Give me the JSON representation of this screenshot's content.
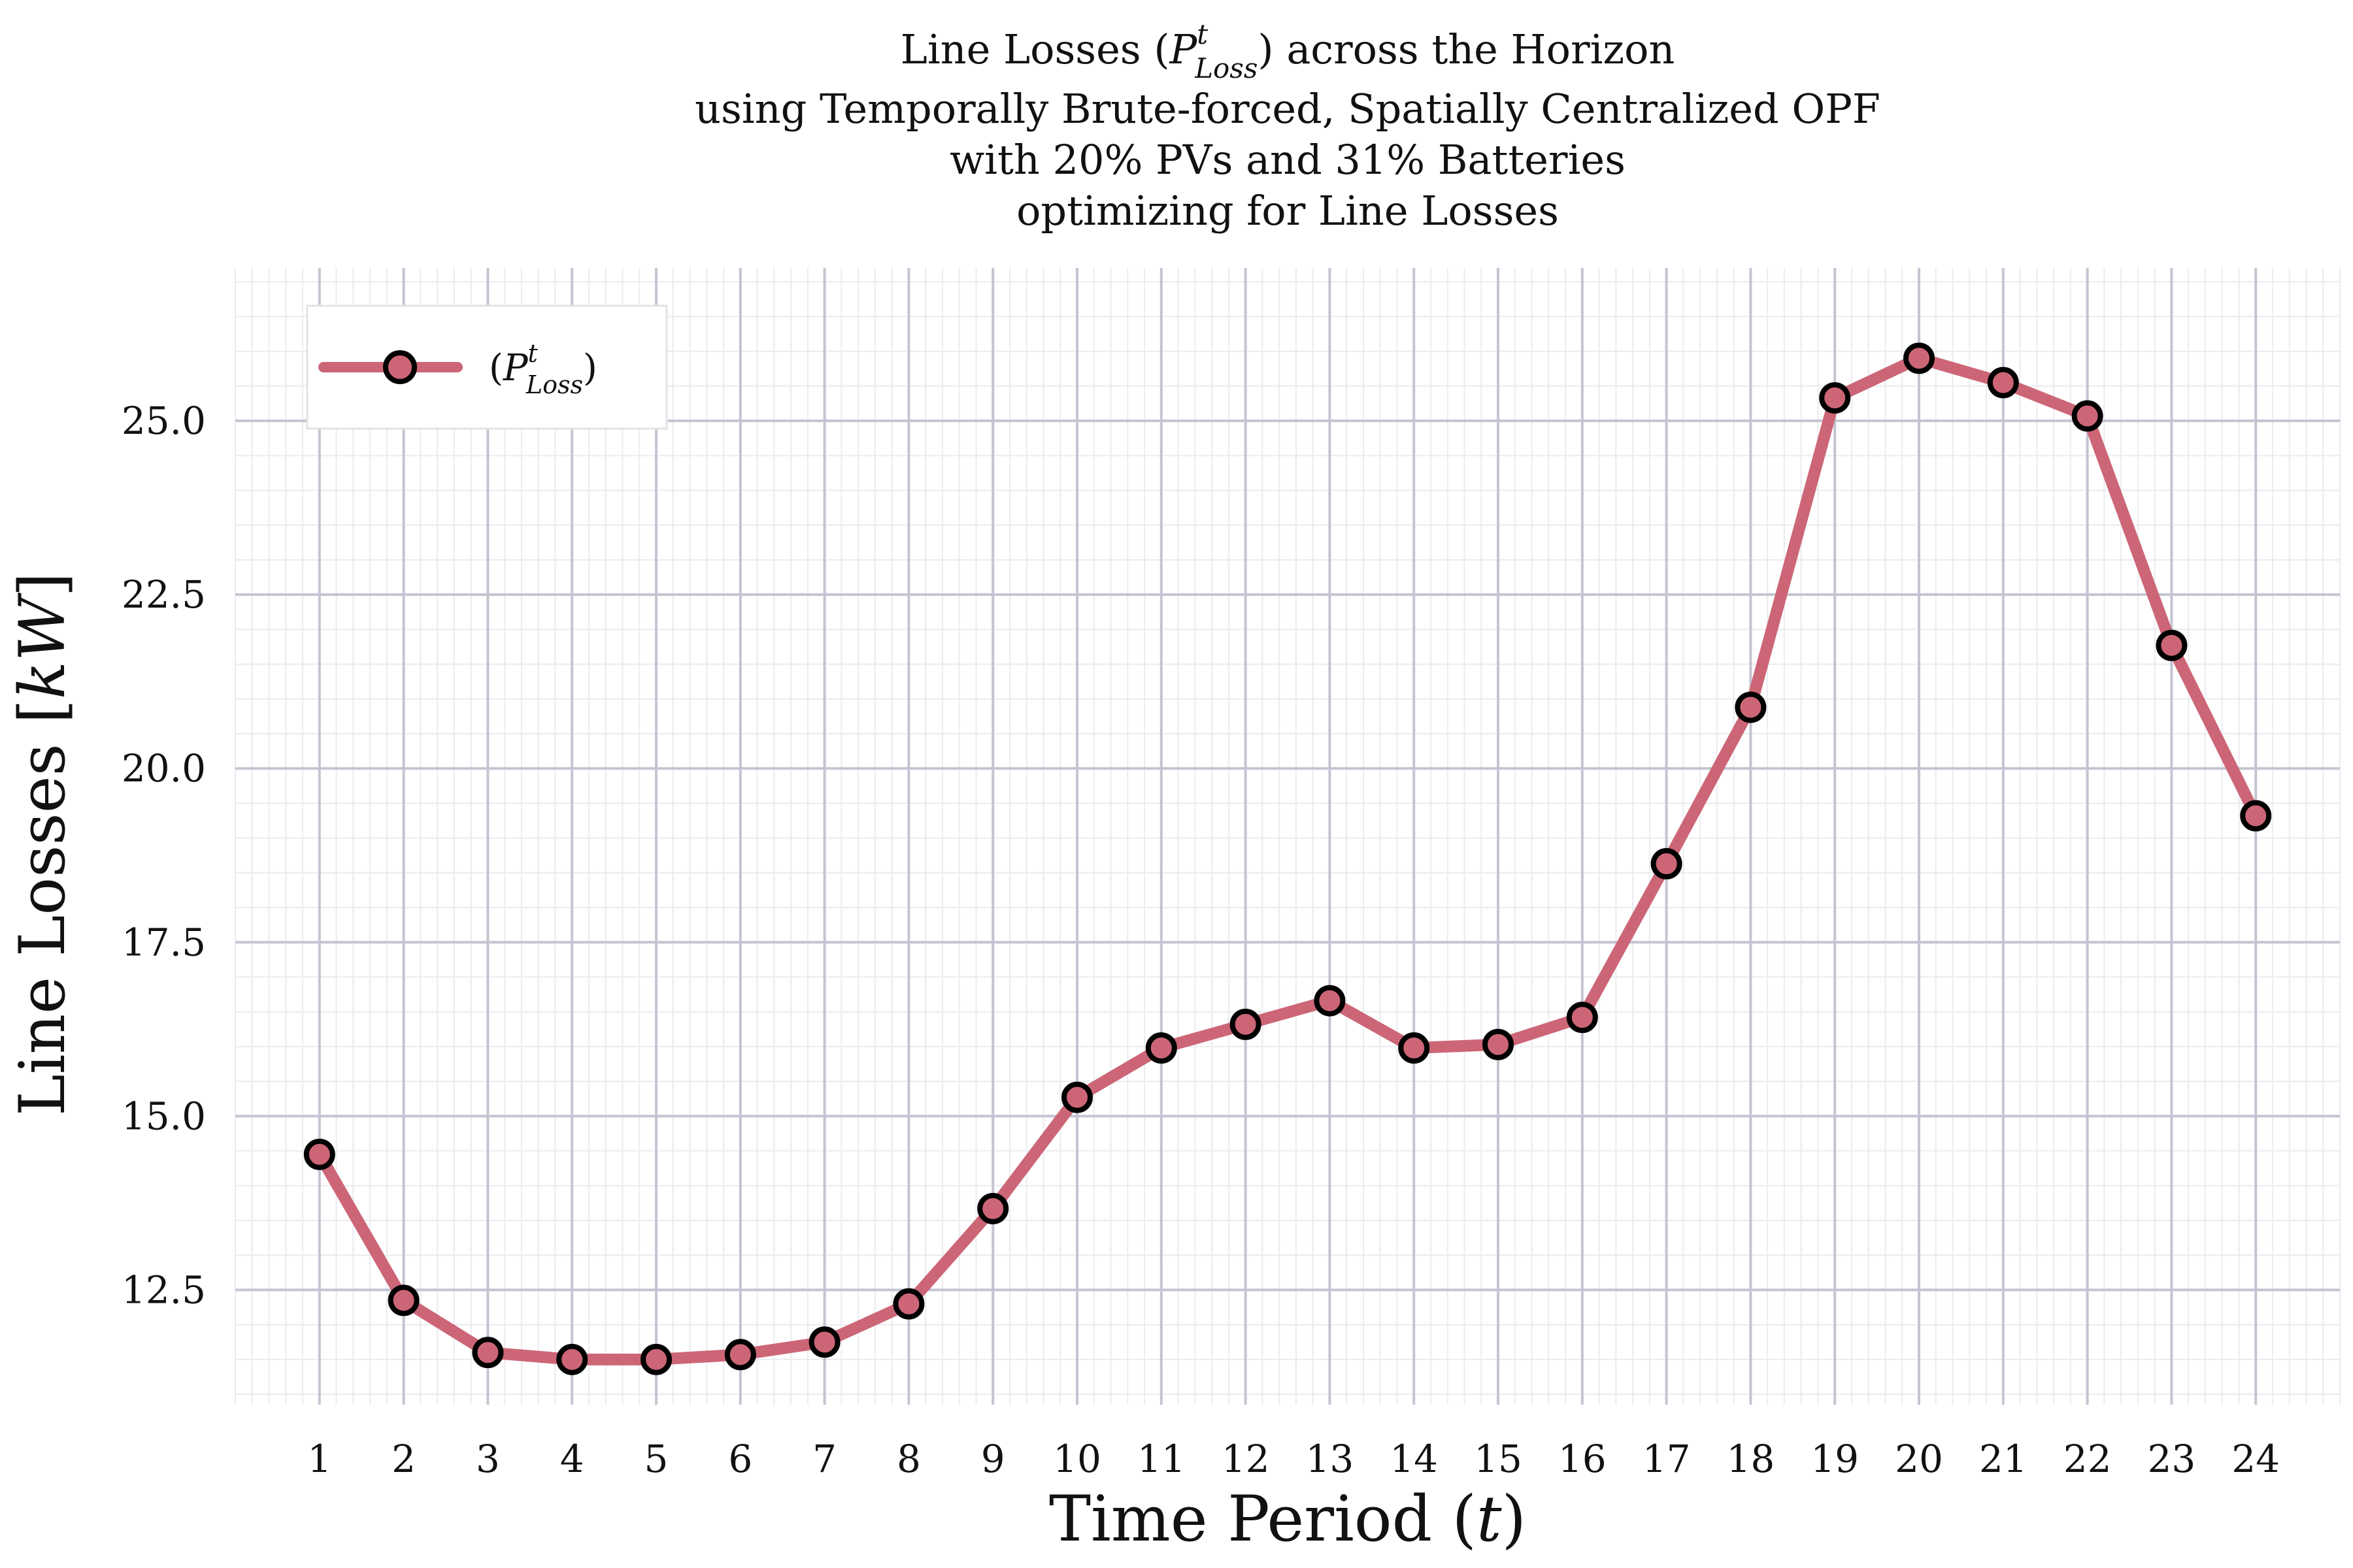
{
  "chart_data": {
    "type": "line",
    "title": [
      "Line Losses (P_Loss^t) across the Horizon",
      "using Temporally Brute-forced, Spatially Centralized OPF",
      "with 20% PVs and 31% Batteries",
      "optimizing for Line Losses"
    ],
    "title_parts": {
      "l1_pre": "Line Losses (",
      "l1_P": "P",
      "l1_sup": "t",
      "l1_sub": "Loss",
      "l1_post": ") across the Horizon",
      "l2": "using Temporally Brute-forced, Spatially Centralized OPF",
      "l3": "with 20% PVs and 31% Batteries",
      "l4": "optimizing for Line Losses"
    },
    "xlabel": "Time Period (t)",
    "xlabel_parts": {
      "pre": "Time Period (",
      "var": "t",
      "post": ")"
    },
    "ylabel": "Line Losses [kW]",
    "ylabel_parts": {
      "pre": "Line Losses [",
      "var": "kW",
      "post": "]"
    },
    "x": [
      1,
      2,
      3,
      4,
      5,
      6,
      7,
      8,
      9,
      10,
      11,
      12,
      13,
      14,
      15,
      16,
      17,
      18,
      19,
      20,
      21,
      22,
      23,
      24
    ],
    "xticks": [
      "1",
      "2",
      "3",
      "4",
      "5",
      "6",
      "7",
      "8",
      "9",
      "10",
      "11",
      "12",
      "13",
      "14",
      "15",
      "16",
      "17",
      "18",
      "19",
      "20",
      "21",
      "22",
      "23",
      "24"
    ],
    "yticks": [
      "12.5",
      "15.0",
      "17.5",
      "20.0",
      "22.5",
      "25.0"
    ],
    "ytick_values": [
      12.5,
      15.0,
      17.5,
      20.0,
      22.5,
      25.0
    ],
    "xlim": [
      0.0,
      25.0
    ],
    "ylim": [
      10.85,
      27.2
    ],
    "grid": true,
    "legend_position": "top-left",
    "series": [
      {
        "name": "(P_Loss^t)",
        "legend_parts": {
          "pre": "(",
          "P": "P",
          "sup": "t",
          "sub": "Loss",
          "post": ")"
        },
        "color": "#cc6677",
        "marker_edge": "#000000",
        "values": [
          14.45,
          12.35,
          11.6,
          11.5,
          11.5,
          11.57,
          11.75,
          12.3,
          13.67,
          15.27,
          15.98,
          16.32,
          16.66,
          15.98,
          16.03,
          16.42,
          18.63,
          20.88,
          25.33,
          25.9,
          25.55,
          25.07,
          21.77,
          19.32
        ]
      }
    ]
  }
}
